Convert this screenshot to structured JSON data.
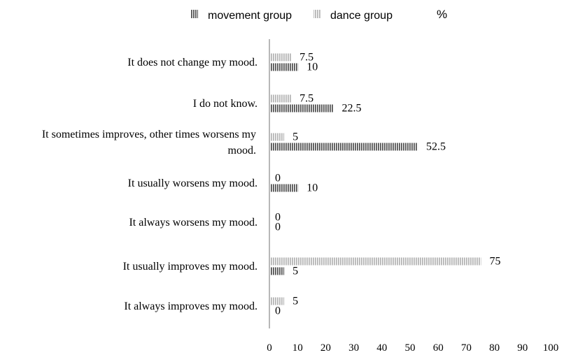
{
  "chart_data": {
    "type": "bar",
    "orientation": "horizontal",
    "unit": "%",
    "categories": [
      "It does not change my mood.",
      "I do not know.",
      "It sometimes improves, other times worsens my mood.",
      "It usually worsens my mood.",
      "It always worsens my mood.",
      "It usually improves my mood.",
      "It always improves my mood."
    ],
    "series": [
      {
        "name": "movement group",
        "values": [
          10,
          22.5,
          52.5,
          10,
          0,
          5,
          0
        ],
        "color": "#555555",
        "pattern": "dark-vertical-stripes"
      },
      {
        "name": "dance group",
        "values": [
          7.5,
          7.5,
          5,
          0,
          0,
          75,
          5
        ],
        "color": "#b5b5b5",
        "pattern": "light-vertical-stripes"
      }
    ],
    "value_labels": {
      "movement group": [
        "10",
        "22.5",
        "52.5",
        "10",
        "0",
        "5",
        "0"
      ],
      "dance group": [
        "7.5",
        "7.5",
        "5",
        "0",
        "0",
        "75",
        "5"
      ]
    },
    "xlim": [
      0,
      100
    ],
    "xticks": [
      "0",
      "10",
      "20",
      "30",
      "40",
      "50",
      "60",
      "70",
      "80",
      "90",
      "100"
    ],
    "legend_position": "top",
    "grid": false
  }
}
